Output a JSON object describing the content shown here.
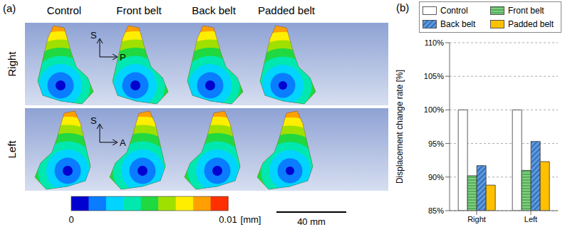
{
  "chart_data": {
    "type": "bar",
    "title": "(b)",
    "categories": [
      "Right",
      "Left"
    ],
    "series": [
      {
        "name": "Control",
        "color": "#ffffff",
        "values": [
          100,
          100
        ]
      },
      {
        "name": "Front belt",
        "color": "#7fd07f",
        "values": [
          90.2,
          91.0
        ]
      },
      {
        "name": "Back belt",
        "color": "#5b9be0",
        "values": [
          91.7,
          95.3
        ]
      },
      {
        "name": "Padded belt",
        "color": "#ffc000",
        "values": [
          88.8,
          92.3
        ]
      }
    ],
    "y_label": "Displacement change rate [%]",
    "ylim": [
      85,
      110
    ],
    "yticks": [
      {
        "value": 85,
        "label": "85%"
      },
      {
        "value": 90,
        "label": "90%"
      },
      {
        "value": 95,
        "label": "95%"
      },
      {
        "value": 100,
        "label": "100%"
      },
      {
        "value": 105,
        "label": "105%"
      },
      {
        "value": 110,
        "label": "110%"
      }
    ],
    "grid": true,
    "legend": "top"
  },
  "panel_a": {
    "title": "(a)",
    "columns": [
      "Control",
      "Front belt",
      "Back belt",
      "Padded belt"
    ],
    "rows": [
      "Right",
      "Left"
    ],
    "axes": [
      [
        "S",
        "P"
      ],
      [
        "S",
        "A"
      ]
    ],
    "colorbar": {
      "range": [
        0,
        0.01
      ],
      "ticks": [
        0,
        0.01
      ],
      "unit": "[mm]",
      "colors": [
        "#0000d0",
        "#0a7cff",
        "#00d4ff",
        "#00e8b0",
        "#20d840",
        "#a0e000",
        "#ffee00",
        "#ffa000",
        "#ff3000"
      ]
    },
    "scale_bar": "40 mm"
  }
}
